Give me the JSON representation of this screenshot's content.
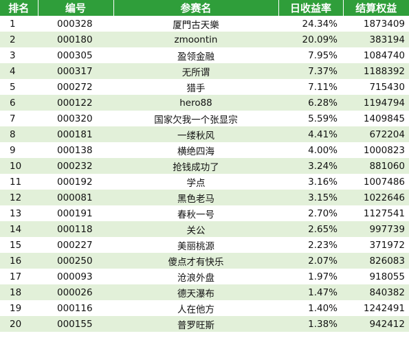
{
  "headers": [
    "排名",
    "编号",
    "参赛名",
    "日收益率",
    "结算权益"
  ],
  "rows": [
    {
      "rank": "1",
      "code": "000328",
      "name": "厦門古天樂",
      "rate": "24.34%",
      "equity": "1873409"
    },
    {
      "rank": "2",
      "code": "000180",
      "name": "zmoontin",
      "rate": "20.09%",
      "equity": "383194"
    },
    {
      "rank": "3",
      "code": "000305",
      "name": "盈领金融",
      "rate": "7.95%",
      "equity": "1084740"
    },
    {
      "rank": "4",
      "code": "000317",
      "name": "无所谓",
      "rate": "7.37%",
      "equity": "1188392"
    },
    {
      "rank": "5",
      "code": "000272",
      "name": "猎手",
      "rate": "7.11%",
      "equity": "715430"
    },
    {
      "rank": "6",
      "code": "000122",
      "name": "hero88",
      "rate": "6.28%",
      "equity": "1194794"
    },
    {
      "rank": "7",
      "code": "000320",
      "name": "国家欠我一个张显宗",
      "rate": "5.59%",
      "equity": "1409845"
    },
    {
      "rank": "8",
      "code": "000181",
      "name": "一缕秋风",
      "rate": "4.41%",
      "equity": "672204"
    },
    {
      "rank": "9",
      "code": "000138",
      "name": "横绝四海",
      "rate": "4.00%",
      "equity": "1000823"
    },
    {
      "rank": "10",
      "code": "000232",
      "name": "抢钱成功了",
      "rate": "3.24%",
      "equity": "881060"
    },
    {
      "rank": "11",
      "code": "000192",
      "name": "学点",
      "rate": "3.16%",
      "equity": "1007486"
    },
    {
      "rank": "12",
      "code": "000081",
      "name": "黑色老马",
      "rate": "3.15%",
      "equity": "1022646"
    },
    {
      "rank": "13",
      "code": "000191",
      "name": "春秋一号",
      "rate": "2.70%",
      "equity": "1127541"
    },
    {
      "rank": "14",
      "code": "000118",
      "name": "关公",
      "rate": "2.65%",
      "equity": "997739"
    },
    {
      "rank": "15",
      "code": "000227",
      "name": "美丽桃源",
      "rate": "2.23%",
      "equity": "371972"
    },
    {
      "rank": "16",
      "code": "000250",
      "name": "傻点才有快乐",
      "rate": "2.07%",
      "equity": "826083"
    },
    {
      "rank": "17",
      "code": "000093",
      "name": "沧浪外盘",
      "rate": "1.97%",
      "equity": "918055"
    },
    {
      "rank": "18",
      "code": "000026",
      "name": "德天瀑布",
      "rate": "1.47%",
      "equity": "840382"
    },
    {
      "rank": "19",
      "code": "000116",
      "name": "人在他方",
      "rate": "1.40%",
      "equity": "1242491"
    },
    {
      "rank": "20",
      "code": "000155",
      "name": "普罗旺斯",
      "rate": "1.38%",
      "equity": "942412"
    }
  ]
}
